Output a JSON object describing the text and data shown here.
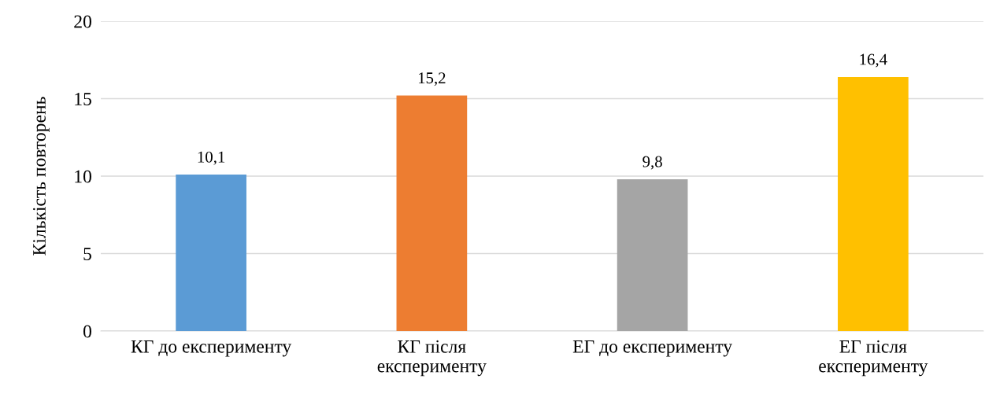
{
  "chart_data": {
    "type": "bar",
    "ylabel": "Кількість повторень",
    "categories": [
      "КГ до експерименту",
      "КГ після\nексперименту",
      "ЕГ до експерименту",
      "ЕГ після\nексперименту"
    ],
    "values": [
      10.1,
      15.2,
      9.8,
      16.4
    ],
    "colors": [
      "#5b9bd5",
      "#ed7d31",
      "#a5a5a5",
      "#ffc000"
    ],
    "value_labels": [
      "10,1",
      "15,2",
      "9,8",
      "16,4"
    ],
    "ylim": [
      0,
      20
    ],
    "yticks": [
      0,
      5,
      10,
      15,
      20
    ],
    "grid": "y"
  }
}
